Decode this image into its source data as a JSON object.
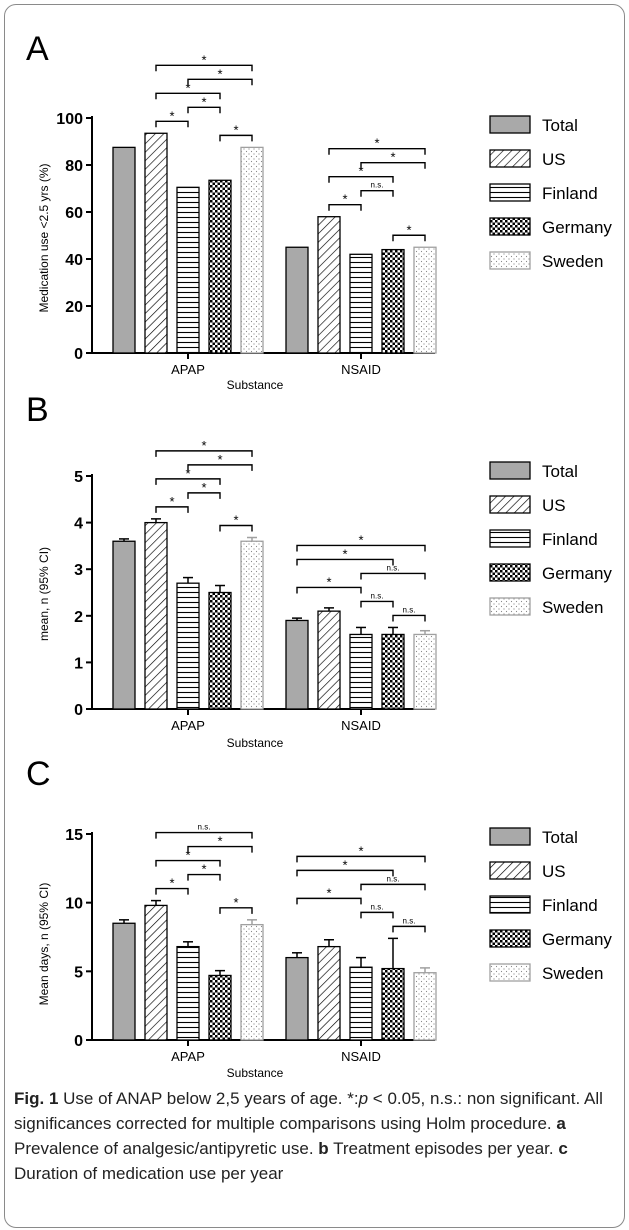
{
  "chart_data": [
    {
      "panel": "A",
      "type": "bar",
      "ylabel": "Medication use <2.5 yrs (%)",
      "xlabel": "Substance",
      "ylim": [
        0,
        100
      ],
      "yticks": [
        0,
        20,
        40,
        60,
        80,
        100
      ],
      "categories": [
        "APAP",
        "NSAID"
      ],
      "series": [
        {
          "name": "Total",
          "values": [
            87.5,
            45
          ]
        },
        {
          "name": "US",
          "values": [
            93.5,
            58
          ]
        },
        {
          "name": "Finland",
          "values": [
            70.5,
            42
          ]
        },
        {
          "name": "Germany",
          "values": [
            73.5,
            44
          ]
        },
        {
          "name": "Sweden",
          "values": [
            87.5,
            45
          ]
        }
      ],
      "error_bars": null,
      "annotations": {
        "APAP": [
          {
            "from": "US",
            "to": "Sweden",
            "label": "*"
          },
          {
            "from": "US",
            "to": "Germany",
            "label": "*"
          },
          {
            "from": "US",
            "to": "Finland",
            "label": "*"
          },
          {
            "from": "Germany",
            "to": "Sweden",
            "label": "*"
          },
          {
            "from": "Finland",
            "to": "Sweden",
            "label": "*"
          },
          {
            "from": "Finland",
            "to": "Germany",
            "label": "*"
          }
        ],
        "NSAID": [
          {
            "from": "US",
            "to": "Sweden",
            "label": "*"
          },
          {
            "from": "US",
            "to": "Germany",
            "label": "*"
          },
          {
            "from": "US",
            "to": "Finland",
            "label": "*"
          },
          {
            "from": "Germany",
            "to": "Sweden",
            "label": "*"
          },
          {
            "from": "Finland",
            "to": "Sweden",
            "label": "*"
          },
          {
            "from": "Finland",
            "to": "Germany",
            "label": "n.s."
          }
        ]
      }
    },
    {
      "panel": "B",
      "type": "bar",
      "ylabel": "mean, n (95% CI)",
      "xlabel": "Substance",
      "ylim": [
        0,
        5
      ],
      "yticks": [
        0,
        1,
        2,
        3,
        4,
        5
      ],
      "categories": [
        "APAP",
        "NSAID"
      ],
      "series": [
        {
          "name": "Total",
          "values": [
            3.6,
            1.9
          ]
        },
        {
          "name": "US",
          "values": [
            4.0,
            2.1
          ]
        },
        {
          "name": "Finland",
          "values": [
            2.7,
            1.6
          ]
        },
        {
          "name": "Germany",
          "values": [
            2.5,
            1.6
          ]
        },
        {
          "name": "Sweden",
          "values": [
            3.6,
            1.6
          ]
        }
      ],
      "error_bars": [
        [
          0.05,
          0.05
        ],
        [
          0.08,
          0.07
        ],
        [
          0.12,
          0.15
        ],
        [
          0.15,
          0.15
        ],
        [
          0.08,
          0.08
        ]
      ],
      "annotations": {
        "APAP": [
          {
            "from": "US",
            "to": "Sweden",
            "label": "*"
          },
          {
            "from": "US",
            "to": "Germany",
            "label": "*"
          },
          {
            "from": "US",
            "to": "Finland",
            "label": "*"
          },
          {
            "from": "Germany",
            "to": "Sweden",
            "label": "*"
          },
          {
            "from": "Finland",
            "to": "Sweden",
            "label": "*"
          },
          {
            "from": "Finland",
            "to": "Germany",
            "label": "*"
          }
        ],
        "NSAID": [
          {
            "from": "Total",
            "to": "Germany",
            "label": "*"
          },
          {
            "from": "Total",
            "to": "Finland",
            "label": "*"
          },
          {
            "from": "Total",
            "to": "Sweden",
            "label": "*"
          },
          {
            "from": "Germany",
            "to": "Sweden",
            "label": "n.s."
          },
          {
            "from": "Finland",
            "to": "Sweden",
            "label": "n.s."
          },
          {
            "from": "Finland",
            "to": "Germany",
            "label": "n.s."
          }
        ]
      }
    },
    {
      "panel": "C",
      "type": "bar",
      "ylabel": "Mean days, n (95% CI)",
      "xlabel": "Substance",
      "ylim": [
        0,
        15
      ],
      "yticks": [
        0,
        5,
        10,
        15
      ],
      "categories": [
        "APAP",
        "NSAID"
      ],
      "series": [
        {
          "name": "Total",
          "values": [
            8.5,
            6.0
          ]
        },
        {
          "name": "US",
          "values": [
            9.8,
            6.8
          ]
        },
        {
          "name": "Finland",
          "values": [
            6.8,
            5.3
          ]
        },
        {
          "name": "Germany",
          "values": [
            4.7,
            5.2
          ]
        },
        {
          "name": "Sweden",
          "values": [
            8.4,
            4.9
          ]
        }
      ],
      "error_bars": [
        [
          0.25,
          0.35
        ],
        [
          0.35,
          0.5
        ],
        [
          0.35,
          0.7
        ],
        [
          0.35,
          2.2
        ],
        [
          0.35,
          0.35
        ]
      ],
      "annotations": {
        "APAP": [
          {
            "from": "US",
            "to": "Sweden",
            "label": "n.s."
          },
          {
            "from": "US",
            "to": "Germany",
            "label": "*"
          },
          {
            "from": "US",
            "to": "Finland",
            "label": "*"
          },
          {
            "from": "Germany",
            "to": "Sweden",
            "label": "*"
          },
          {
            "from": "Finland",
            "to": "Sweden",
            "label": "*"
          },
          {
            "from": "Finland",
            "to": "Germany",
            "label": "*"
          }
        ],
        "NSAID": [
          {
            "from": "Total",
            "to": "Germany",
            "label": "*"
          },
          {
            "from": "Total",
            "to": "Finland",
            "label": "*"
          },
          {
            "from": "Total",
            "to": "Sweden",
            "label": "*"
          },
          {
            "from": "Germany",
            "to": "Sweden",
            "label": "n.s."
          },
          {
            "from": "Finland",
            "to": "Sweden",
            "label": "n.s."
          },
          {
            "from": "Finland",
            "to": "Germany",
            "label": "n.s."
          }
        ]
      }
    }
  ],
  "legend": {
    "placement": "right",
    "entries": [
      {
        "name": "Total",
        "pattern": "solid"
      },
      {
        "name": "US",
        "pattern": "diagonal"
      },
      {
        "name": "Finland",
        "pattern": "horizontal"
      },
      {
        "name": "Germany",
        "pattern": "checker"
      },
      {
        "name": "Sweden",
        "pattern": "dots"
      }
    ]
  },
  "colors": {
    "total_fill": "#a9a9a9",
    "sweden_outline": "#a0a0a0",
    "axis": "#000000",
    "frame": "#8a8a8a"
  },
  "caption": {
    "fig_label": "Fig. 1",
    "t1": " Use of ANAP below 2,5 years of age. *:",
    "p_symbol": "p",
    "t2": " < 0.05, n.s.: non significant. All significances corrected for multiple comparisons using Holm procedure. ",
    "a_label": "a",
    "a_text": " Prevalence of analgesic/antipyretic use. ",
    "b_label": "b",
    "b_text": " Treatment episodes per year. ",
    "c_label": "c",
    "c_text": " Duration of medication use per year"
  }
}
